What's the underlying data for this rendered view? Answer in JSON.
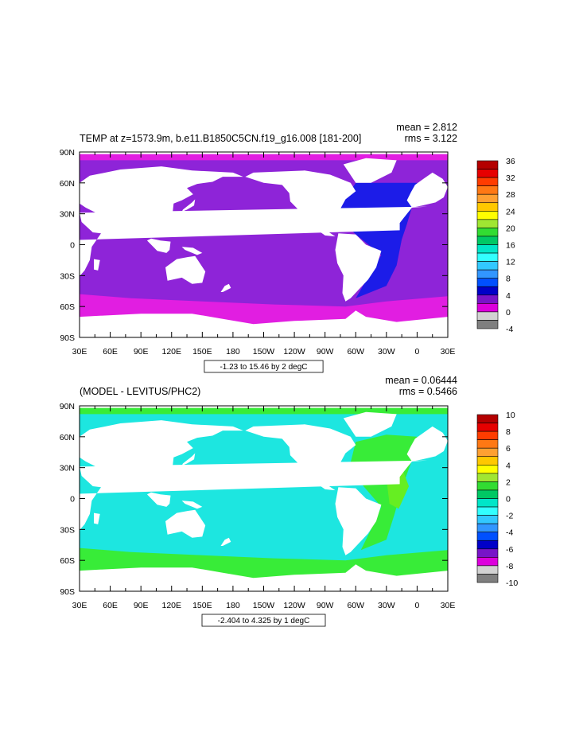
{
  "colors": {
    "ocean_top": "#8e24d8",
    "southern_top": "#e11ee1",
    "arctic_top": "#e11ee1",
    "atlantic_top": "#1c1ce8",
    "ocean_bot": "#1de6e0",
    "southern_bot": "#38ec38",
    "arctic_bot": "#38ec38",
    "atlantic_bot": "#38ec38",
    "atlantic_bot2": "#66ee22",
    "land": "#ffffff",
    "frame": "#000000"
  },
  "chart_data": [
    {
      "type": "heatmap",
      "title": "TEMP at z=1573.9m, b.e11.B1850C5CN.f19_g16.008 [181-200]",
      "stats": {
        "mean": "mean = 2.812",
        "rms": "rms = 3.122"
      },
      "contour_note": "-1.23 to 15.46 by 2 degC",
      "x_ticks": [
        "30E",
        "60E",
        "90E",
        "120E",
        "150E",
        "180",
        "150W",
        "120W",
        "90W",
        "60W",
        "30W",
        "0",
        "30E"
      ],
      "y_ticks": [
        "90N",
        "60N",
        "30N",
        "0",
        "30S",
        "60S",
        "90S"
      ],
      "colorbar": {
        "labels": [
          "36",
          "32",
          "28",
          "24",
          "20",
          "16",
          "12",
          "8",
          "4",
          "0",
          "-4"
        ],
        "colors": [
          "#b40000",
          "#e60000",
          "#ff3c00",
          "#ff7814",
          "#ffa032",
          "#ffc800",
          "#ffff00",
          "#a0e632",
          "#32dc32",
          "#00c864",
          "#00e6c8",
          "#32ffff",
          "#32c8ff",
          "#3296ff",
          "#0050ff",
          "#0000c8",
          "#7814c8",
          "#dc00dc",
          "#d2d2d2",
          "#7f7f7f"
        ]
      }
    },
    {
      "type": "heatmap",
      "title": "(MODEL - LEVITUS/PHC2)",
      "stats": {
        "mean": "mean = 0.06444",
        "rms": "rms = 0.5466"
      },
      "contour_note": "-2.404 to 4.325 by 1 degC",
      "x_ticks": [
        "30E",
        "60E",
        "90E",
        "120E",
        "150E",
        "180",
        "150W",
        "120W",
        "90W",
        "60W",
        "30W",
        "0",
        "30E"
      ],
      "y_ticks": [
        "90N",
        "60N",
        "30N",
        "0",
        "30S",
        "60S",
        "90S"
      ],
      "colorbar": {
        "labels": [
          "10",
          "8",
          "6",
          "4",
          "2",
          "0",
          "-2",
          "-4",
          "-6",
          "-8",
          "-10"
        ],
        "colors": [
          "#b40000",
          "#e60000",
          "#ff3c00",
          "#ff7814",
          "#ffa032",
          "#ffc800",
          "#ffff00",
          "#a0e632",
          "#32dc32",
          "#00c864",
          "#00e6c8",
          "#32ffff",
          "#32c8ff",
          "#3296ff",
          "#0050ff",
          "#0000c8",
          "#7814c8",
          "#dc00dc",
          "#d2d2d2",
          "#7f7f7f"
        ]
      }
    }
  ]
}
